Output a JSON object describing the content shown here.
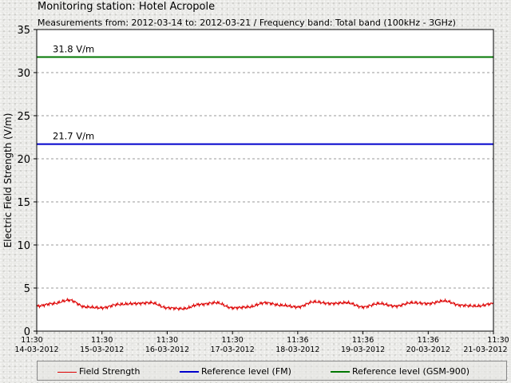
{
  "header": {
    "title": "Monitoring station: Hotel Acropole",
    "subtitle": "Measurements from: 2012-03-14 to: 2012-03-21 / Frequency band: Total band (100kHz - 3GHz)"
  },
  "legend": {
    "items": [
      {
        "label": "Field Strength",
        "color": "#dd0000"
      },
      {
        "label": "Reference level (FM)",
        "color": "#0000cc"
      },
      {
        "label": "Reference level (GSM-900)",
        "color": "#007700"
      }
    ]
  },
  "chart_data": {
    "type": "line",
    "title": "Monitoring station: Hotel Acropole",
    "subtitle": "Measurements from: 2012-03-14 to: 2012-03-21 / Frequency band: Total band (100kHz - 3GHz)",
    "ylabel": "Electric Field Strength (V/m)",
    "ylim": [
      0,
      35
    ],
    "yticks": [
      0,
      5,
      10,
      15,
      20,
      25,
      30,
      35
    ],
    "grid": true,
    "legend_position": "bottom",
    "x_tick_labels": [
      {
        "time": "11:30",
        "date": "14-03-2012"
      },
      {
        "time": "11:30",
        "date": "15-03-2012"
      },
      {
        "time": "11:30",
        "date": "16-03-2012"
      },
      {
        "time": "11:30",
        "date": "17-03-2012"
      },
      {
        "time": "11:36",
        "date": "18-03-2012"
      },
      {
        "time": "11:36",
        "date": "19-03-2012"
      },
      {
        "time": "11:36",
        "date": "20-03-2012"
      },
      {
        "time": "11:30",
        "date": "21-03-2012"
      }
    ],
    "reference_lines": [
      {
        "name": "Reference level (GSM-900)",
        "value": 31.8,
        "label": "31.8 V/m",
        "color": "#007700"
      },
      {
        "name": "Reference level (FM)",
        "value": 21.7,
        "label": "21.7 V/m",
        "color": "#0000cc"
      }
    ],
    "series": [
      {
        "name": "Field Strength",
        "color": "#dd0000",
        "x": [
          0,
          0.25,
          0.5,
          0.75,
          1,
          1.25,
          1.5,
          1.75,
          2,
          2.25,
          2.5,
          2.75,
          3,
          3.25,
          3.5,
          3.75,
          4,
          4.25,
          4.5,
          4.75,
          5,
          5.25,
          5.5,
          5.75,
          6,
          6.25,
          6.5,
          6.75,
          7
        ],
        "values": [
          2.9,
          3.2,
          3.6,
          2.8,
          2.7,
          3.1,
          3.2,
          3.3,
          2.7,
          2.6,
          3.1,
          3.3,
          2.7,
          2.8,
          3.3,
          3.0,
          2.8,
          3.4,
          3.2,
          3.3,
          2.8,
          3.2,
          2.9,
          3.3,
          3.2,
          3.5,
          3.0,
          2.9,
          3.2
        ]
      }
    ]
  }
}
